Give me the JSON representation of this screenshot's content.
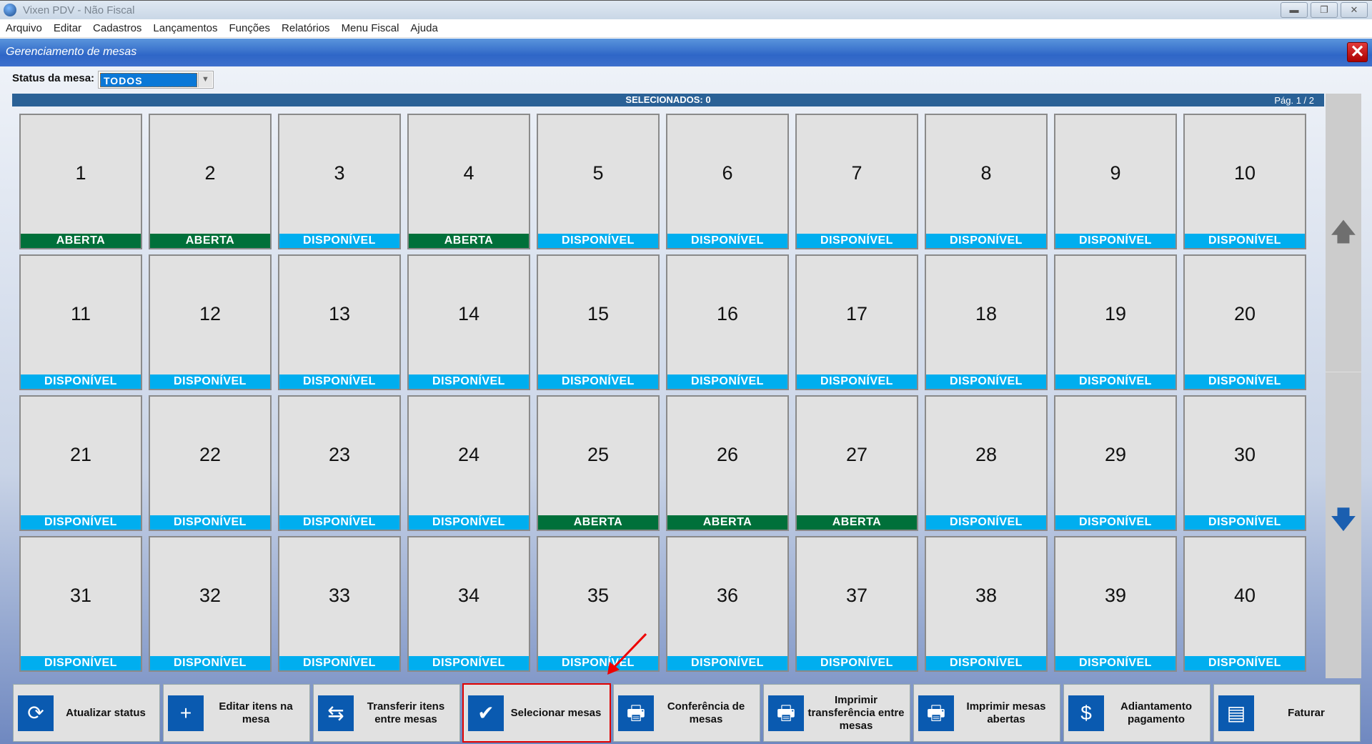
{
  "window": {
    "title": "Vixen PDV - Não Fiscal"
  },
  "menu": [
    "Arquivo",
    "Editar",
    "Cadastros",
    "Lançamentos",
    "Funções",
    "Relatórios",
    "Menu Fiscal",
    "Ajuda"
  ],
  "panel": {
    "title": "Gerenciamento de mesas",
    "status_label": "Status da mesa:",
    "status_value": "TODOS",
    "selected": "SELECIONADOS: 0",
    "page": "Pág. 1 / 2"
  },
  "colors": {
    "aberta": "#00703a",
    "disponivel": "#00aeef",
    "highlight": "#e00000"
  },
  "tiles": [
    {
      "n": "1",
      "s": "ABERTA"
    },
    {
      "n": "2",
      "s": "ABERTA"
    },
    {
      "n": "3",
      "s": "DISPONÍVEL"
    },
    {
      "n": "4",
      "s": "ABERTA"
    },
    {
      "n": "5",
      "s": "DISPONÍVEL"
    },
    {
      "n": "6",
      "s": "DISPONÍVEL"
    },
    {
      "n": "7",
      "s": "DISPONÍVEL"
    },
    {
      "n": "8",
      "s": "DISPONÍVEL"
    },
    {
      "n": "9",
      "s": "DISPONÍVEL"
    },
    {
      "n": "10",
      "s": "DISPONÍVEL"
    },
    {
      "n": "11",
      "s": "DISPONÍVEL"
    },
    {
      "n": "12",
      "s": "DISPONÍVEL"
    },
    {
      "n": "13",
      "s": "DISPONÍVEL"
    },
    {
      "n": "14",
      "s": "DISPONÍVEL"
    },
    {
      "n": "15",
      "s": "DISPONÍVEL"
    },
    {
      "n": "16",
      "s": "DISPONÍVEL"
    },
    {
      "n": "17",
      "s": "DISPONÍVEL"
    },
    {
      "n": "18",
      "s": "DISPONÍVEL"
    },
    {
      "n": "19",
      "s": "DISPONÍVEL"
    },
    {
      "n": "20",
      "s": "DISPONÍVEL"
    },
    {
      "n": "21",
      "s": "DISPONÍVEL"
    },
    {
      "n": "22",
      "s": "DISPONÍVEL"
    },
    {
      "n": "23",
      "s": "DISPONÍVEL"
    },
    {
      "n": "24",
      "s": "DISPONÍVEL"
    },
    {
      "n": "25",
      "s": "ABERTA"
    },
    {
      "n": "26",
      "s": "ABERTA"
    },
    {
      "n": "27",
      "s": "ABERTA"
    },
    {
      "n": "28",
      "s": "DISPONÍVEL"
    },
    {
      "n": "29",
      "s": "DISPONÍVEL"
    },
    {
      "n": "30",
      "s": "DISPONÍVEL"
    },
    {
      "n": "31",
      "s": "DISPONÍVEL"
    },
    {
      "n": "32",
      "s": "DISPONÍVEL"
    },
    {
      "n": "33",
      "s": "DISPONÍVEL"
    },
    {
      "n": "34",
      "s": "DISPONÍVEL"
    },
    {
      "n": "35",
      "s": "DISPONÍVEL"
    },
    {
      "n": "36",
      "s": "DISPONÍVEL"
    },
    {
      "n": "37",
      "s": "DISPONÍVEL"
    },
    {
      "n": "38",
      "s": "DISPONÍVEL"
    },
    {
      "n": "39",
      "s": "DISPONÍVEL"
    },
    {
      "n": "40",
      "s": "DISPONÍVEL"
    }
  ],
  "buttons": [
    {
      "label": "Atualizar status",
      "icon": "refresh-icon",
      "glyph": "⟳"
    },
    {
      "label": "Editar itens na mesa",
      "icon": "document-add-icon",
      "glyph": "+"
    },
    {
      "label": "Transferir itens entre mesas",
      "icon": "document-transfer-icon",
      "glyph": "⇆"
    },
    {
      "label": "Selecionar mesas",
      "icon": "checkbox-icon",
      "glyph": "✔",
      "highlighted": true
    },
    {
      "label": "Conferência de mesas",
      "icon": "printer-list-icon",
      "glyph": "🖶"
    },
    {
      "label": "Imprimir transferência entre mesas",
      "icon": "printer-transfer-icon",
      "glyph": "🖶"
    },
    {
      "label": "Imprimir mesas abertas",
      "icon": "printer-open-icon",
      "glyph": "🖶"
    },
    {
      "label": "Adiantamento pagamento",
      "icon": "hand-money-icon",
      "glyph": "$"
    },
    {
      "label": "Faturar",
      "icon": "invoice-icon",
      "glyph": "▤"
    }
  ]
}
